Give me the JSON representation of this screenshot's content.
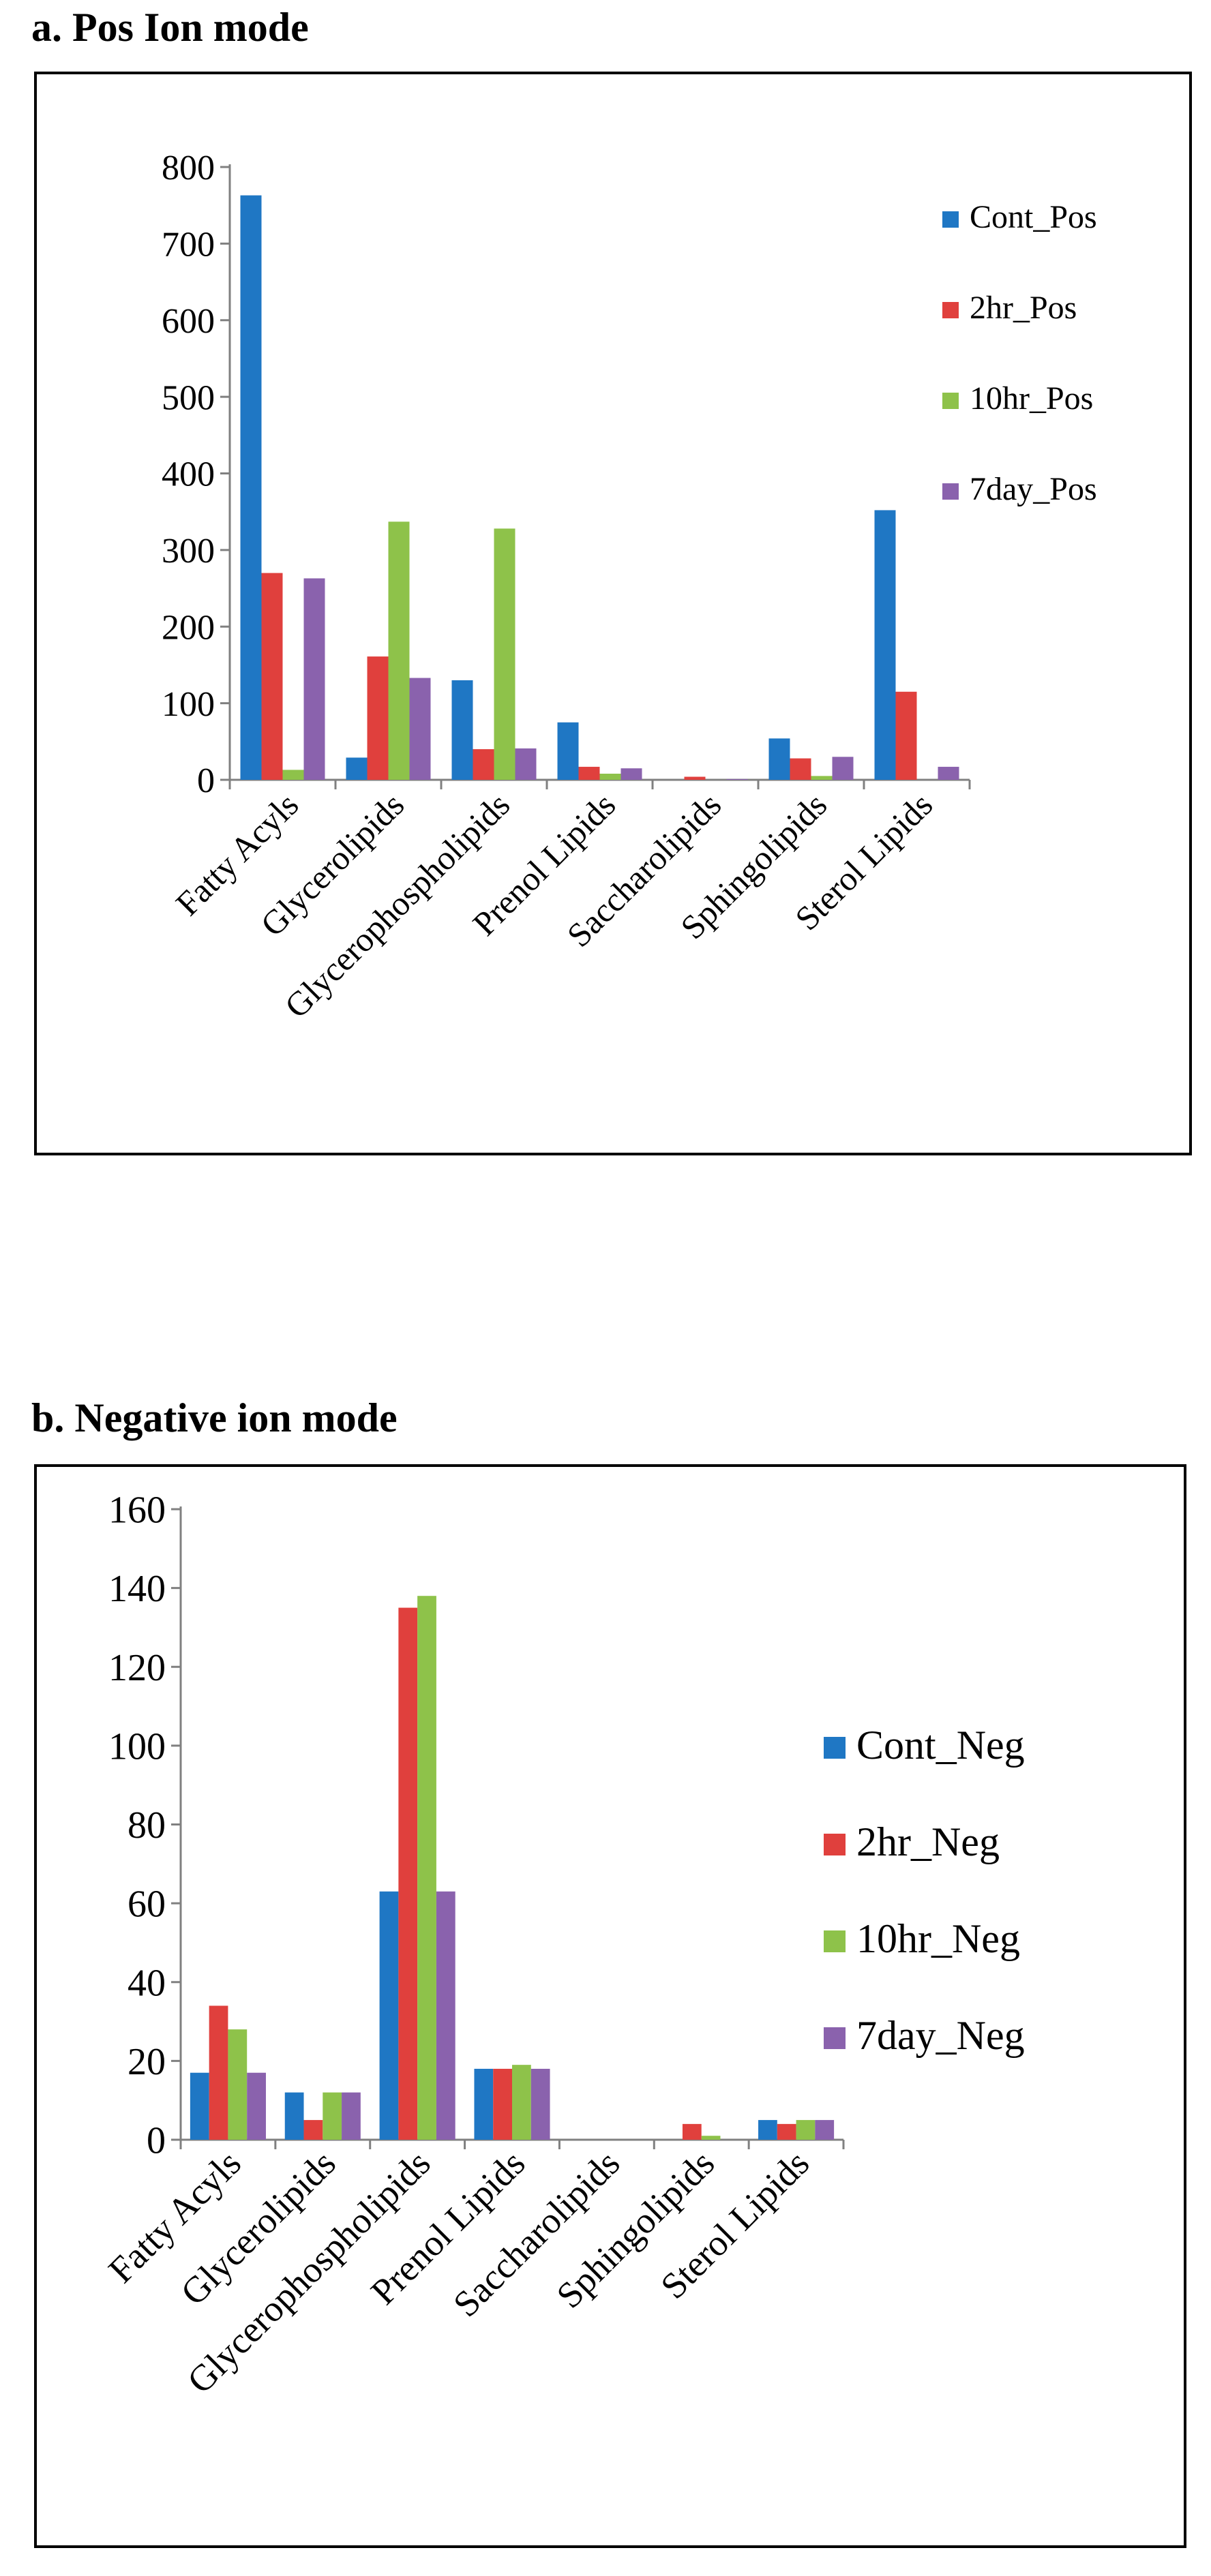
{
  "colors": {
    "series": [
      "#1f77c4",
      "#e0403d",
      "#8ec24a",
      "#8a62ad"
    ]
  },
  "chart_data": [
    {
      "type": "bar",
      "title": "a. Pos Ion mode",
      "categories": [
        "Fatty Acyls",
        "Glycerolipids",
        "Glycerophospholipids",
        "Prenol Lipids",
        "Saccharolipids",
        "Sphingolipids",
        "Sterol Lipids"
      ],
      "series": [
        {
          "name": "Cont_Pos",
          "values": [
            763,
            29,
            130,
            75,
            0,
            54,
            352
          ]
        },
        {
          "name": "2hr_Pos",
          "values": [
            270,
            161,
            40,
            17,
            4,
            28,
            115
          ]
        },
        {
          "name": "10hr_Pos",
          "values": [
            13,
            337,
            328,
            8,
            0,
            5,
            0
          ]
        },
        {
          "name": "7day_Pos",
          "values": [
            263,
            133,
            41,
            15,
            1,
            30,
            17
          ]
        }
      ],
      "yticks": [
        "0",
        "100",
        "200",
        "300",
        "400",
        "500",
        "600",
        "700",
        "800"
      ],
      "ylim": [
        0,
        800
      ],
      "xlabel": "",
      "ylabel": "",
      "legend": "right"
    },
    {
      "type": "bar",
      "title": "b. Negative ion mode",
      "categories": [
        "Fatty Acyls",
        "Glycerolipids",
        "Glycerophospholipids",
        "Prenol Lipids",
        "Saccharolipids",
        "Sphingolipids",
        "Sterol Lipids"
      ],
      "series": [
        {
          "name": "Cont_Neg",
          "values": [
            17,
            12,
            63,
            18,
            0,
            0,
            5
          ]
        },
        {
          "name": "2hr_Neg",
          "values": [
            34,
            5,
            135,
            18,
            0,
            4,
            4
          ]
        },
        {
          "name": "10hr_Neg",
          "values": [
            28,
            12,
            138,
            19,
            0,
            1,
            5
          ]
        },
        {
          "name": "7day_Neg",
          "values": [
            17,
            12,
            63,
            18,
            0,
            0,
            5
          ]
        }
      ],
      "yticks": [
        "0",
        "20",
        "40",
        "60",
        "80",
        "100",
        "120",
        "140",
        "160"
      ],
      "ylim": [
        0,
        160
      ],
      "xlabel": "",
      "ylabel": "",
      "legend": "right"
    }
  ]
}
